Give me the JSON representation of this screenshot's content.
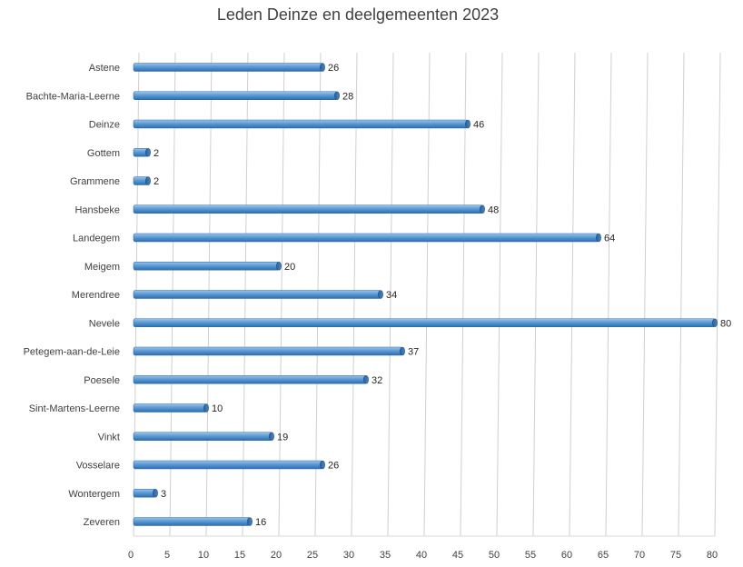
{
  "chart_data": {
    "type": "bar",
    "orientation": "horizontal",
    "title": "Leden Deinze en deelgemeenten 2023",
    "categories": [
      "Astene",
      "Bachte-Maria-Leerne",
      "Deinze",
      "Gottem",
      "Grammene",
      "Hansbeke",
      "Landegem",
      "Meigem",
      "Merendree",
      "Nevele",
      "Petegem-aan-de-Leie",
      "Poesele",
      "Sint-Martens-Leerne",
      "Vinkt",
      "Vosselare",
      "Wontergem",
      "Zeveren"
    ],
    "values": [
      26,
      28,
      46,
      2,
      2,
      48,
      64,
      20,
      34,
      80,
      37,
      32,
      10,
      19,
      26,
      3,
      16
    ],
    "xlim": [
      0,
      80
    ],
    "xticks": [
      0,
      5,
      10,
      15,
      20,
      25,
      30,
      35,
      40,
      45,
      50,
      55,
      60,
      65,
      70,
      75,
      80
    ],
    "grid": true,
    "data_labels": true,
    "legend": "none",
    "bar_color": "#5B9BD5"
  }
}
